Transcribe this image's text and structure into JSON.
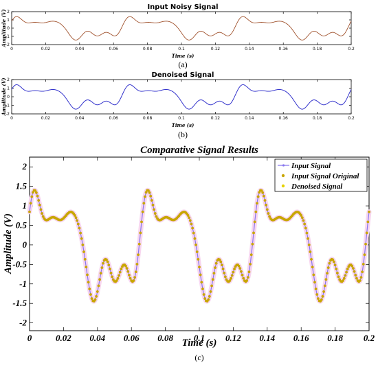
{
  "colors": {
    "noisy": "#a0522d",
    "denoised": "#3333cc",
    "original_markers": "#c8a600",
    "input_line_c": "#8877ee",
    "denoised_legend": "#e6d200",
    "halo": "#f7d6ef"
  },
  "sublabels": {
    "a": "(a)",
    "b": "(b)",
    "c": "(c)"
  },
  "chart_data": [
    {
      "id": "a",
      "type": "line",
      "title": "Input Noisy Signal",
      "xlabel": "Time (s)",
      "ylabel": "Amplitude (V)",
      "xlim": [
        0,
        0.2
      ],
      "ylim": [
        -2,
        2
      ],
      "x_ticks": [
        "0",
        "0.02",
        "0.04",
        "0.06",
        "0.08",
        "0.1",
        "0.12",
        "0.14",
        "0.16",
        "0.18",
        "0.2"
      ],
      "y_ticks": [
        "-2",
        "-1",
        "0",
        "1",
        "2"
      ],
      "series": [
        {
          "color": "#a0522d",
          "signal": {
            "f0_hz": 15,
            "terms": [
              {
                "harmonic": 1,
                "amp": 1.0,
                "phase": 0.35
              },
              {
                "harmonic": 3,
                "amp": 0.5,
                "phase": 0.6
              },
              {
                "harmonic": 5,
                "amp": 0.28,
                "phase": 0.3
              },
              {
                "harmonic": 6,
                "amp": 0.15,
                "phase": 1.2
              }
            ]
          }
        }
      ]
    },
    {
      "id": "b",
      "type": "line",
      "title": "Denoised Signal",
      "xlabel": "Time (s)",
      "ylabel": "Amplitude (V)",
      "xlim": [
        0,
        0.2
      ],
      "ylim": [
        -2,
        2
      ],
      "x_ticks": [
        "0",
        "0.02",
        "0.04",
        "0.06",
        "0.08",
        "0.1",
        "0.12",
        "0.14",
        "0.16",
        "0.18",
        "0.2"
      ],
      "y_ticks": [
        "-2",
        "-1",
        "0",
        "1",
        "2"
      ],
      "series": [
        {
          "color": "#3333cc",
          "signal": {
            "f0_hz": 15,
            "terms": [
              {
                "harmonic": 1,
                "amp": 1.0,
                "phase": 0.35
              },
              {
                "harmonic": 3,
                "amp": 0.5,
                "phase": 0.6
              },
              {
                "harmonic": 5,
                "amp": 0.28,
                "phase": 0.3
              },
              {
                "harmonic": 6,
                "amp": 0.15,
                "phase": 1.2
              }
            ]
          }
        }
      ]
    },
    {
      "id": "c",
      "type": "line",
      "title": "Comparative Signal Results",
      "xlabel": "Time (s)",
      "ylabel": "Amplitude (V)",
      "xlim": [
        0,
        0.2
      ],
      "ylim": [
        -2.2,
        2.25
      ],
      "x_ticks": [
        "0",
        "0.02",
        "0.04",
        "0.06",
        "0.08",
        "0.1",
        "0.12",
        "0.14",
        "0.16",
        "0.18",
        "0.2"
      ],
      "y_ticks": [
        "-2",
        "-1.5",
        "-1",
        "-0.5",
        "0",
        "0.5",
        "1",
        "1.5",
        "2"
      ],
      "legend_position": "top-right",
      "series": [
        {
          "name": "Input Signal",
          "style": "line-with-markers",
          "color": "#8877ee",
          "signal": {
            "f0_hz": 15,
            "terms": [
              {
                "harmonic": 1,
                "amp": 1.0,
                "phase": 0.35
              },
              {
                "harmonic": 3,
                "amp": 0.5,
                "phase": 0.6
              },
              {
                "harmonic": 5,
                "amp": 0.28,
                "phase": 0.3
              },
              {
                "harmonic": 6,
                "amp": 0.15,
                "phase": 1.2
              }
            ]
          }
        },
        {
          "name": "Input Signal Original",
          "style": "markers",
          "color": "#c8a600",
          "signal": {
            "f0_hz": 15,
            "terms": [
              {
                "harmonic": 1,
                "amp": 1.0,
                "phase": 0.35
              },
              {
                "harmonic": 3,
                "amp": 0.5,
                "phase": 0.6
              },
              {
                "harmonic": 5,
                "amp": 0.28,
                "phase": 0.3
              },
              {
                "harmonic": 6,
                "amp": 0.15,
                "phase": 1.2
              }
            ]
          }
        },
        {
          "name": "Denoised Signal",
          "style": "markers",
          "color": "#e6d200",
          "signal": {
            "f0_hz": 15,
            "terms": [
              {
                "harmonic": 1,
                "amp": 1.0,
                "phase": 0.35
              },
              {
                "harmonic": 3,
                "amp": 0.5,
                "phase": 0.6
              },
              {
                "harmonic": 5,
                "amp": 0.28,
                "phase": 0.3
              },
              {
                "harmonic": 6,
                "amp": 0.15,
                "phase": 1.2
              }
            ]
          }
        }
      ]
    }
  ]
}
